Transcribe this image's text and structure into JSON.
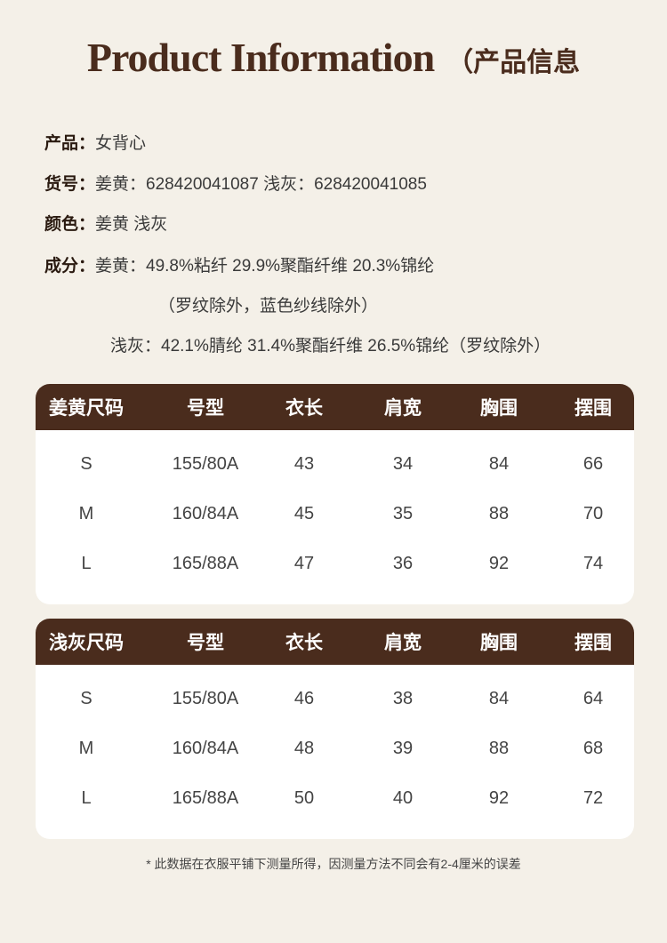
{
  "title": {
    "en": "Product Information",
    "zh": "（产品信息"
  },
  "info": [
    {
      "label": "产品：",
      "value": "女背心"
    },
    {
      "label": "货号：",
      "value": "姜黄：628420041087  浅灰：628420041085"
    },
    {
      "label": "颜色：",
      "value": "姜黄  浅灰"
    },
    {
      "label": "成分：",
      "value": "姜黄：49.8%粘纤 29.9%聚酯纤维 20.3%锦纶"
    }
  ],
  "composition_extra": [
    "（罗纹除外，蓝色纱线除外）",
    "浅灰：42.1%腈纶 31.4%聚酯纤维 26.5%锦纶（罗纹除外）"
  ],
  "tables": [
    {
      "headers": [
        "姜黄尺码",
        "号型",
        "衣长",
        "肩宽",
        "胸围",
        "摆围"
      ],
      "rows": [
        [
          "S",
          "155/80A",
          "43",
          "34",
          "84",
          "66"
        ],
        [
          "M",
          "160/84A",
          "45",
          "35",
          "88",
          "70"
        ],
        [
          "L",
          "165/88A",
          "47",
          "36",
          "92",
          "74"
        ]
      ]
    },
    {
      "headers": [
        "浅灰尺码",
        "号型",
        "衣长",
        "肩宽",
        "胸围",
        "摆围"
      ],
      "rows": [
        [
          "S",
          "155/80A",
          "46",
          "38",
          "84",
          "64"
        ],
        [
          "M",
          "160/84A",
          "48",
          "39",
          "88",
          "68"
        ],
        [
          "L",
          "165/88A",
          "50",
          "40",
          "92",
          "72"
        ]
      ]
    }
  ],
  "note": "* 此数据在衣服平铺下测量所得，因测量方法不同会有2-4厘米的误差",
  "colors": {
    "background": "#f4f0e8",
    "header": "#4a2c1d",
    "title": "#4a2c1d"
  }
}
